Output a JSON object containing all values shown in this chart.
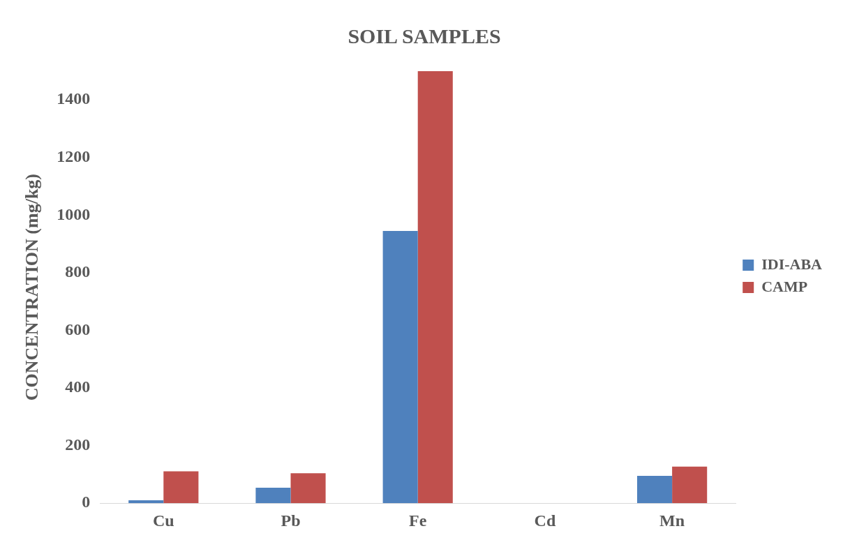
{
  "chart_data": {
    "type": "bar",
    "title": "SOIL SAMPLES",
    "ylabel": "CONCENTRATION (mg/kg)",
    "categories": [
      "Cu",
      "Pb",
      "Fe",
      "Cd",
      "Mn"
    ],
    "series": [
      {
        "name": "IDI-ABA",
        "color": "#4f81bd",
        "values": [
          10,
          54,
          945,
          0,
          95
        ]
      },
      {
        "name": "CAMP",
        "color": "#c0504d",
        "values": [
          111,
          104,
          1500,
          0,
          127
        ]
      }
    ],
    "ylim": [
      0,
      1500
    ],
    "yticks": [
      0,
      200,
      400,
      600,
      800,
      1000,
      1200,
      1400
    ],
    "grid": false,
    "legend": "right"
  }
}
